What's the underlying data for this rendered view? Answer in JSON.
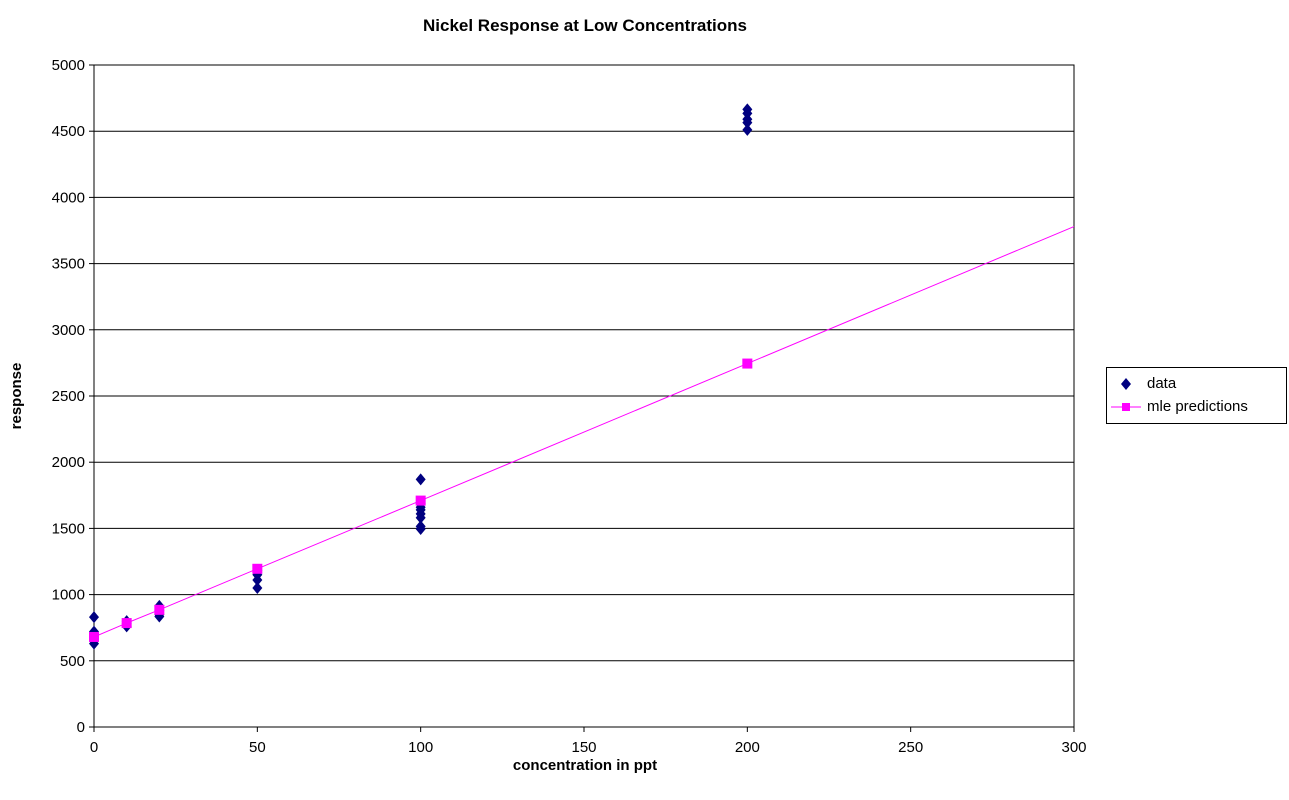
{
  "chart_data": {
    "type": "scatter",
    "title": "Nickel Response at Low Concentrations",
    "xlabel": "concentration in ppt",
    "ylabel": "response",
    "xlim": [
      0,
      300
    ],
    "ylim": [
      0,
      5000
    ],
    "xticks": [
      0,
      50,
      100,
      150,
      200,
      250,
      300
    ],
    "yticks": [
      0,
      500,
      1000,
      1500,
      2000,
      2500,
      3000,
      3500,
      4000,
      4500,
      5000
    ],
    "grid": "horizontal",
    "legend_position": "right",
    "series": [
      {
        "name": "data",
        "kind": "scatter",
        "marker": "diamond",
        "color": "#000080",
        "points": [
          [
            0,
            630
          ],
          [
            0,
            660
          ],
          [
            0,
            690
          ],
          [
            0,
            720
          ],
          [
            0,
            830
          ],
          [
            10,
            760
          ],
          [
            10,
            785
          ],
          [
            10,
            800
          ],
          [
            20,
            835
          ],
          [
            20,
            850
          ],
          [
            20,
            880
          ],
          [
            20,
            915
          ],
          [
            50,
            1050
          ],
          [
            50,
            1110
          ],
          [
            50,
            1150
          ],
          [
            50,
            1180
          ],
          [
            100,
            1495
          ],
          [
            100,
            1515
          ],
          [
            100,
            1580
          ],
          [
            100,
            1610
          ],
          [
            100,
            1640
          ],
          [
            100,
            1660
          ],
          [
            100,
            1690
          ],
          [
            100,
            1870
          ],
          [
            200,
            4510
          ],
          [
            200,
            4565
          ],
          [
            200,
            4590
          ],
          [
            200,
            4635
          ],
          [
            200,
            4665
          ]
        ]
      },
      {
        "name": "mle predictions",
        "kind": "line",
        "marker": "square",
        "color": "#FF00FF",
        "points": [
          [
            0,
            680
          ],
          [
            10,
            785
          ],
          [
            20,
            885
          ],
          [
            50,
            1195
          ],
          [
            100,
            1710
          ],
          [
            200,
            2745
          ]
        ],
        "line_extends_to": [
          300,
          3780
        ]
      }
    ]
  }
}
